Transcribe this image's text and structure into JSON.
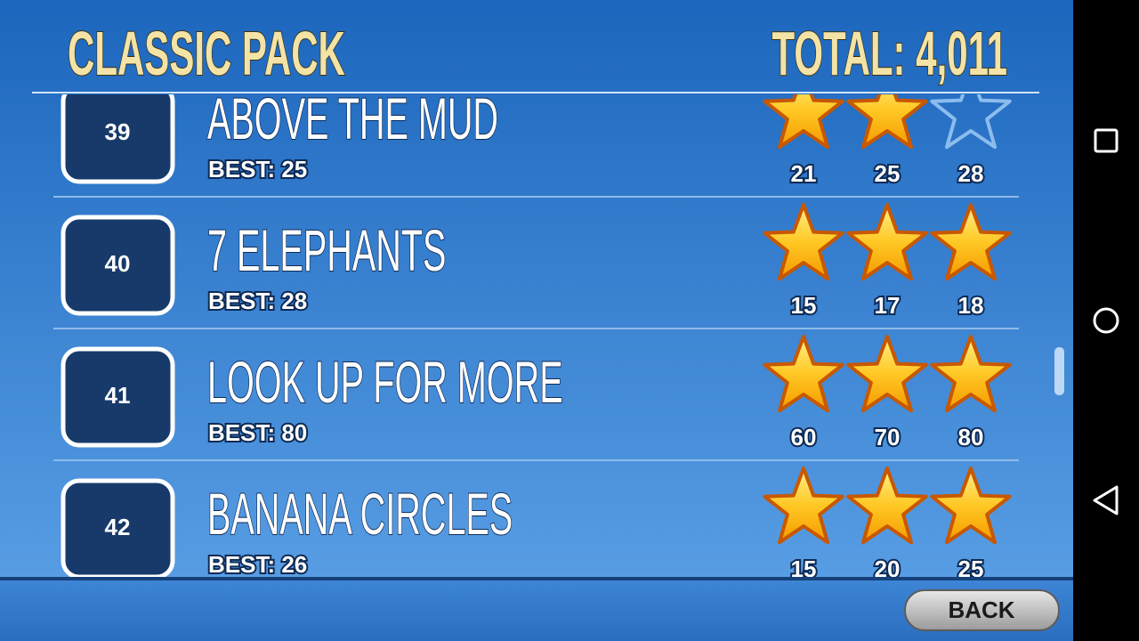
{
  "header": {
    "title": "CLASSIC PACK",
    "total": "TOTAL: 4,011"
  },
  "levels": [
    {
      "number": "39",
      "name": "ABOVE THE MUD",
      "best": "BEST: 25",
      "stars": 2,
      "thresholds": [
        "21",
        "25",
        "28"
      ]
    },
    {
      "number": "40",
      "name": "7 ELEPHANTS",
      "best": "BEST: 28",
      "stars": 3,
      "thresholds": [
        "15",
        "17",
        "18"
      ]
    },
    {
      "number": "41",
      "name": "LOOK UP FOR MORE",
      "best": "BEST: 80",
      "stars": 3,
      "thresholds": [
        "60",
        "70",
        "80"
      ]
    },
    {
      "number": "42",
      "name": "BANANA CIRCLES",
      "best": "BEST: 26",
      "stars": 3,
      "thresholds": [
        "15",
        "20",
        "25"
      ]
    }
  ],
  "footer": {
    "back": "BACK"
  }
}
